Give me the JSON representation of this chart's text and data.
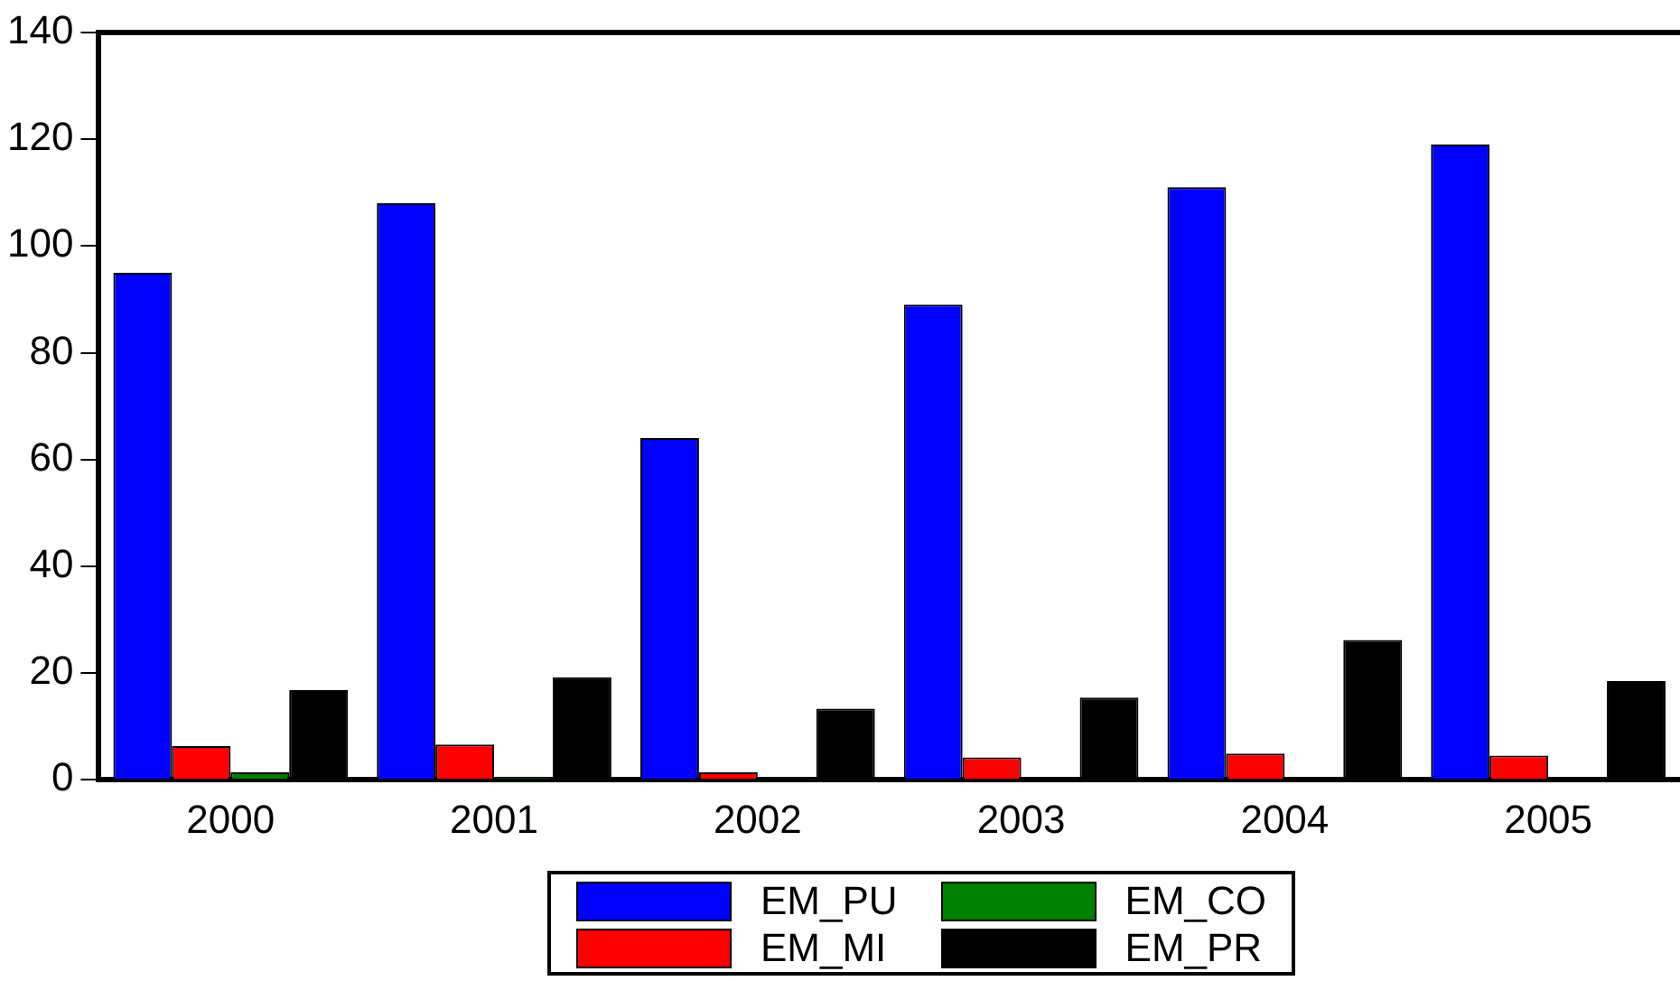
{
  "chart_data": {
    "type": "bar",
    "categories": [
      "2000",
      "2001",
      "2002",
      "2003",
      "2004",
      "2005"
    ],
    "series": [
      {
        "name": "EM_PU",
        "color": "#0000ff",
        "values": [
          95,
          108,
          64,
          89,
          111,
          119
        ]
      },
      {
        "name": "EM_MI",
        "color": "#ff0000",
        "values": [
          6.3,
          6.6,
          1.4,
          4.2,
          4.9,
          4.5
        ]
      },
      {
        "name": "EM_CO",
        "color": "#007f00",
        "values": [
          1.4,
          0.4,
          0.3,
          0.2,
          0.2,
          0.2
        ]
      },
      {
        "name": "EM_PR",
        "color": "#000000",
        "values": [
          16.8,
          19.2,
          13.3,
          15.4,
          26.2,
          18.5
        ]
      }
    ],
    "ylim": [
      0,
      140
    ],
    "yticks": [
      0,
      20,
      40,
      60,
      80,
      100,
      120,
      140
    ],
    "grid": false,
    "legend": "bottom"
  }
}
